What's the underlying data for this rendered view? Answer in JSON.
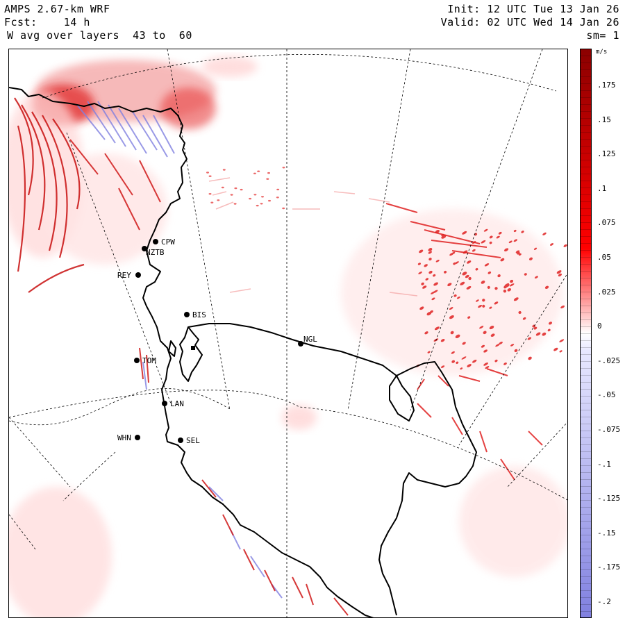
{
  "header": {
    "model": "AMPS 2.67-km WRF",
    "fcst_label": "Fcst:",
    "fcst_value": "14 h",
    "field": "W avg over layers  43 to  60",
    "init": "Init: 12 UTC Tue 13 Jan 26",
    "valid": "Valid: 02 UTC Wed 14 Jan 26",
    "smoothing": "sm= 1"
  },
  "colorbar": {
    "unit": "m/s",
    "ticks": [
      ".175",
      ".15",
      ".125",
      ".1",
      ".075",
      ".05",
      ".025",
      "0",
      "-.025",
      "-.05",
      "-.075",
      "-.1",
      "-.125",
      "-.15",
      "-.175",
      "-.2"
    ],
    "positive_color": "#8b0000",
    "zero_color": "#ffffff",
    "negative_color": "#8080e0"
  },
  "stations": [
    {
      "name": "CPW"
    },
    {
      "name": "NZTB"
    },
    {
      "name": "REY"
    },
    {
      "name": "BIS"
    },
    {
      "name": "NGL"
    },
    {
      "name": "TOM"
    },
    {
      "name": "LAN"
    },
    {
      "name": "WHN"
    },
    {
      "name": "SEL"
    }
  ]
}
